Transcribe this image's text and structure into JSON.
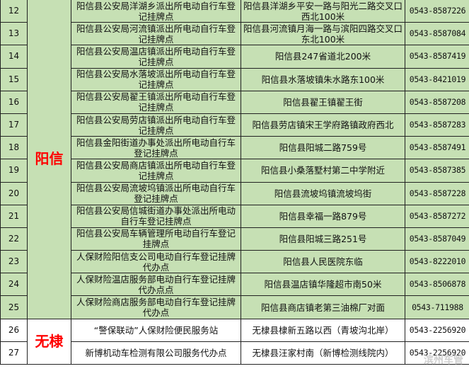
{
  "colors": {
    "group_bg": "#c6e0b4",
    "region_text": "#ff0000"
  },
  "watermark": "滨州车管",
  "groups": [
    {
      "region": "阳信",
      "rows": [
        {
          "no": "12",
          "name": "阳信县公安局洋湖乡派出所电动自行车登记挂牌点",
          "address": "阳信县洋湖乡平安一路与阳光二路交叉口西北100米",
          "phone": "0543-8587226"
        },
        {
          "no": "13",
          "name": "阳信县公安局河流镇派出所电动自行车登记挂牌点",
          "address": "阳信县河流镇月海一路与滨阳四路交叉口东北100米",
          "phone": "0543-8587084"
        },
        {
          "no": "14",
          "name": "阳信县公安局温店镇派出所电动自行车登记挂牌点",
          "address": "阳信县247省道北200米",
          "phone": "0543-8587419"
        },
        {
          "no": "15",
          "name": "阳信县公安局水落坡派出所电动自行车登记挂牌点",
          "address": "阳信县水落坡镇朱水路东100米",
          "phone": "0543-8421019"
        },
        {
          "no": "16",
          "name": "阳信县公安局翟王镇派出所电动自行车登记挂牌点",
          "address": "阳信县翟王镇翟王街",
          "phone": "0543-8587208"
        },
        {
          "no": "17",
          "name": "阳信县公安局劳店镇派出所电动自行车登记挂牌点",
          "address": "阳信县劳店镇宋王学府路镇政府西北",
          "phone": "0543-8587283"
        },
        {
          "no": "18",
          "name": "阳信县金阳街道办事处派出所电动自行车登记挂牌点",
          "address": "阳信县阳城二路759号",
          "phone": "0543-8587491"
        },
        {
          "no": "19",
          "name": "阳信县公安局商店镇派出所电动自行车登记挂牌点",
          "address": "阳信县小桑落墅村第二中学附近",
          "phone": "0543-8587385"
        },
        {
          "no": "20",
          "name": "阳信县公安局流坡坞镇派出所电动自行车登记挂牌点",
          "address": "阳信县流坡坞镇流坡坞街",
          "phone": "0543-8587228"
        },
        {
          "no": "21",
          "name": "阳信县公安局信城街道办事处派出所电动自行车登记挂牌点",
          "address": "阳信县幸福一路879号",
          "phone": "0543-8587272"
        },
        {
          "no": "22",
          "name": "阳信县公安局车辆管理所电动自行车登记挂牌点",
          "address": "阳信县阳城三路251号",
          "phone": "0543-8587049"
        },
        {
          "no": "23",
          "name": "人保财险阳信支公司电动自行车登记挂牌代办点",
          "address": "阳信县人民医院东临",
          "phone": "0543-8222010"
        },
        {
          "no": "24",
          "name": "人保财险温店服务部电动自行车登记挂牌代办点点",
          "address": "阳信县温店镇华隆超市南50米",
          "phone": "0543-8506878"
        },
        {
          "no": "25",
          "name": "人保财险商店服务部电动自行车登记挂牌代办点",
          "address": "阳信县商店镇老第三油棉厂对面",
          "phone": "0543-711988"
        }
      ]
    },
    {
      "region": "无棣",
      "rows": [
        {
          "no": "26",
          "name": "“警保联动”人保财险便民服务站",
          "address": "无棣县棣新五路以西（青坡沟北岸）",
          "phone": "0543-2256920"
        },
        {
          "no": "27",
          "name": "新博机动车检测有限公司服务代办点",
          "address": "无棣县汪家村南（新博检测线院内）",
          "phone": "0543-2256920"
        }
      ]
    }
  ]
}
